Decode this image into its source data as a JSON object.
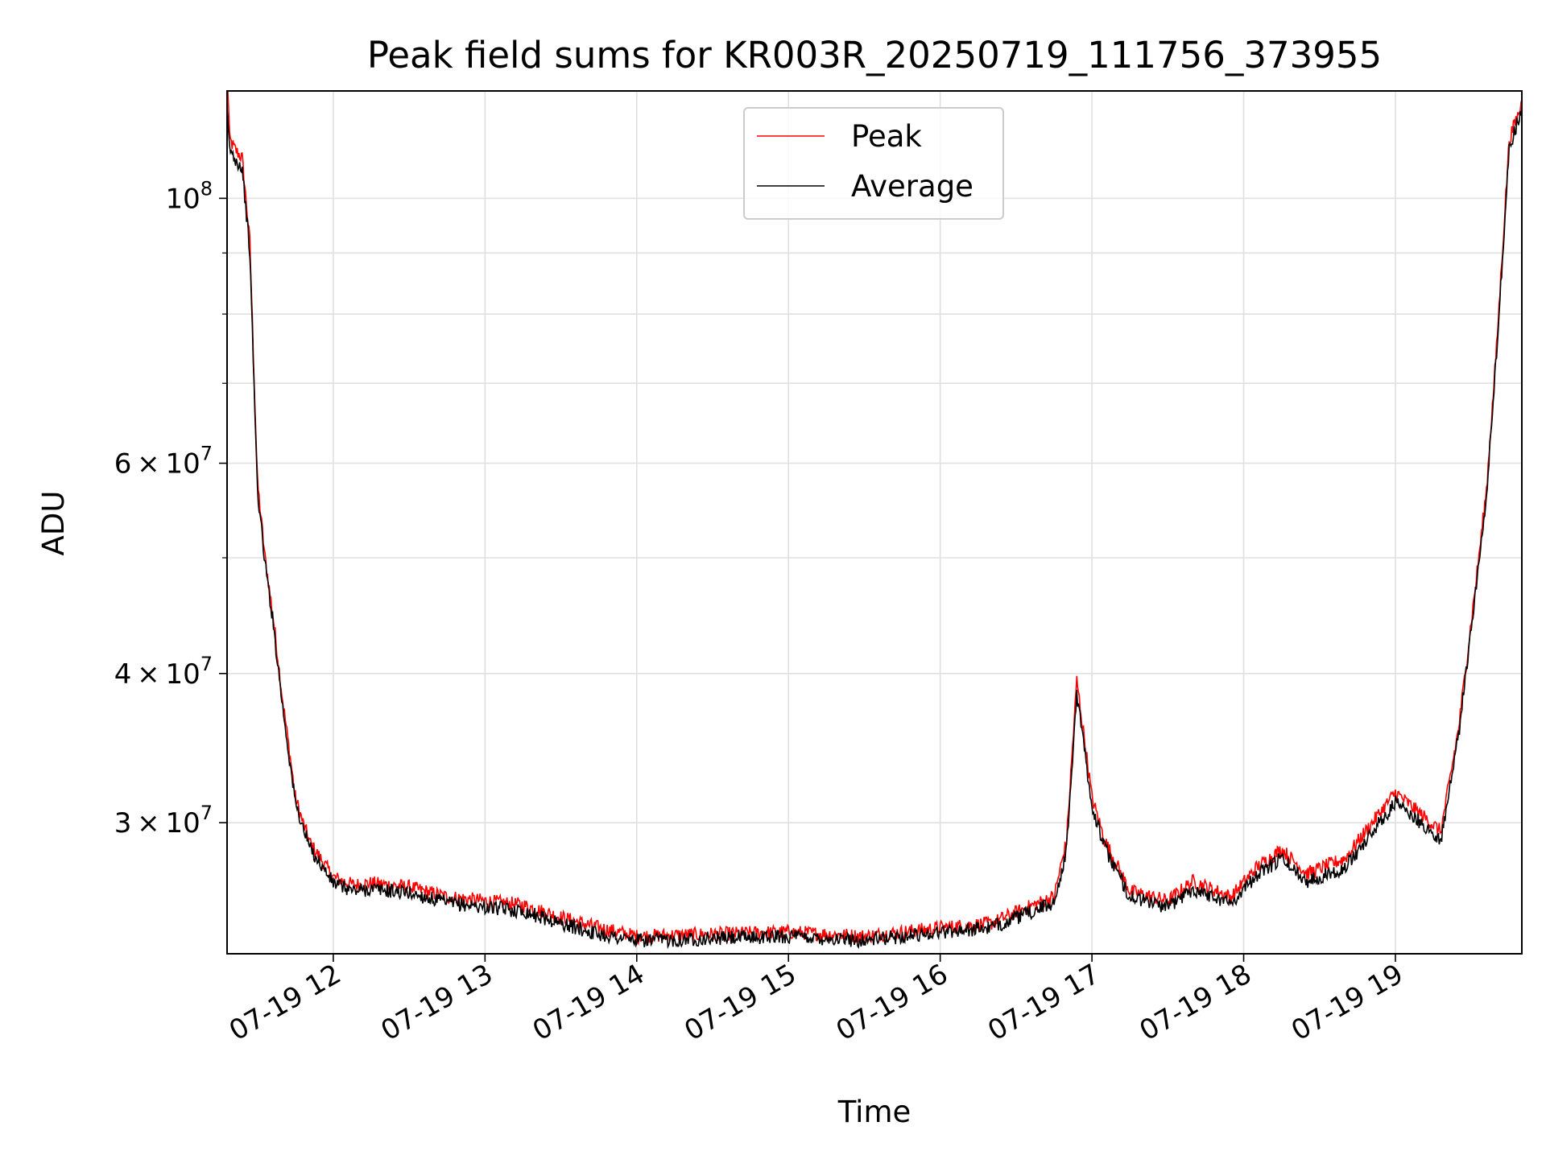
{
  "chart_data": {
    "type": "line",
    "title": "Peak field sums for KR003R_20250719_111756_373955",
    "xlabel": "Time",
    "ylabel": "ADU",
    "yscale": "log",
    "ylim": [
      23300000,
      123000000
    ],
    "xlim": [
      "2025-07-19 11:18",
      "2025-07-19 19:50"
    ],
    "grid": true,
    "legend_position": "top-center",
    "x_ticks": [
      {
        "t": "2025-07-19 12:00",
        "label": "07-19 12"
      },
      {
        "t": "2025-07-19 13:00",
        "label": "07-19 13"
      },
      {
        "t": "2025-07-19 14:00",
        "label": "07-19 14"
      },
      {
        "t": "2025-07-19 15:00",
        "label": "07-19 15"
      },
      {
        "t": "2025-07-19 16:00",
        "label": "07-19 16"
      },
      {
        "t": "2025-07-19 17:00",
        "label": "07-19 17"
      },
      {
        "t": "2025-07-19 18:00",
        "label": "07-19 18"
      },
      {
        "t": "2025-07-19 19:00",
        "label": "07-19 19"
      }
    ],
    "y_ticks": [
      {
        "v": 30000000,
        "coef": "3",
        "exp": "7"
      },
      {
        "v": 40000000,
        "coef": "4",
        "exp": "7"
      },
      {
        "v": 60000000,
        "coef": "6",
        "exp": "7"
      },
      {
        "v": 100000000,
        "coef": "",
        "exp": "8"
      }
    ],
    "y_minor_ticks": [
      50000000,
      70000000,
      80000000,
      90000000
    ],
    "series": [
      {
        "name": "Peak",
        "color": "#ff0000",
        "x": [
          "2025-07-19 11:18",
          "2025-07-19 11:19",
          "2025-07-19 11:21",
          "2025-07-19 11:24",
          "2025-07-19 11:27",
          "2025-07-19 11:30",
          "2025-07-19 11:33",
          "2025-07-19 11:36",
          "2025-07-19 11:40",
          "2025-07-19 11:43",
          "2025-07-19 11:45",
          "2025-07-19 11:48",
          "2025-07-19 11:51",
          "2025-07-19 11:55",
          "2025-07-19 12:00",
          "2025-07-19 12:08",
          "2025-07-19 12:15",
          "2025-07-19 12:30",
          "2025-07-19 12:45",
          "2025-07-19 13:00",
          "2025-07-19 13:15",
          "2025-07-19 13:30",
          "2025-07-19 13:45",
          "2025-07-19 14:00",
          "2025-07-19 14:30",
          "2025-07-19 15:00",
          "2025-07-19 15:30",
          "2025-07-19 16:00",
          "2025-07-19 16:20",
          "2025-07-19 16:35",
          "2025-07-19 16:45",
          "2025-07-19 16:50",
          "2025-07-19 16:54",
          "2025-07-19 17:00",
          "2025-07-19 17:05",
          "2025-07-19 17:15",
          "2025-07-19 17:30",
          "2025-07-19 17:40",
          "2025-07-19 17:55",
          "2025-07-19 18:05",
          "2025-07-19 18:15",
          "2025-07-19 18:25",
          "2025-07-19 18:40",
          "2025-07-19 19:00",
          "2025-07-19 19:10",
          "2025-07-19 19:18",
          "2025-07-19 19:25",
          "2025-07-19 19:32",
          "2025-07-19 19:36",
          "2025-07-19 19:40",
          "2025-07-19 19:45",
          "2025-07-19 19:50"
        ],
        "values": [
          130000000,
          112000000,
          110000000,
          108000000,
          92000000,
          58000000,
          50000000,
          45000000,
          38000000,
          34000000,
          31500000,
          30000000,
          28800000,
          28000000,
          27000000,
          26600000,
          26700000,
          26500000,
          26000000,
          25800000,
          25600000,
          25000000,
          24500000,
          24100000,
          24200000,
          24300000,
          24100000,
          24500000,
          24700000,
          25500000,
          26000000,
          29000000,
          39500000,
          31500000,
          29000000,
          26300000,
          25800000,
          26800000,
          26000000,
          27500000,
          28500000,
          27200000,
          28000000,
          31800000,
          30500000,
          29500000,
          36000000,
          48000000,
          57000000,
          75000000,
          112000000,
          120000000
        ]
      },
      {
        "name": "Average",
        "color": "#000000",
        "x": [
          "2025-07-19 11:18",
          "2025-07-19 11:19",
          "2025-07-19 11:21",
          "2025-07-19 11:24",
          "2025-07-19 11:27",
          "2025-07-19 11:30",
          "2025-07-19 11:33",
          "2025-07-19 11:36",
          "2025-07-19 11:40",
          "2025-07-19 11:43",
          "2025-07-19 11:45",
          "2025-07-19 11:48",
          "2025-07-19 11:51",
          "2025-07-19 11:55",
          "2025-07-19 12:00",
          "2025-07-19 12:08",
          "2025-07-19 12:15",
          "2025-07-19 12:30",
          "2025-07-19 12:45",
          "2025-07-19 13:00",
          "2025-07-19 13:15",
          "2025-07-19 13:30",
          "2025-07-19 13:45",
          "2025-07-19 14:00",
          "2025-07-19 14:30",
          "2025-07-19 15:00",
          "2025-07-19 15:30",
          "2025-07-19 16:00",
          "2025-07-19 16:20",
          "2025-07-19 16:35",
          "2025-07-19 16:45",
          "2025-07-19 16:50",
          "2025-07-19 16:54",
          "2025-07-19 17:00",
          "2025-07-19 17:05",
          "2025-07-19 17:15",
          "2025-07-19 17:30",
          "2025-07-19 17:40",
          "2025-07-19 17:55",
          "2025-07-19 18:05",
          "2025-07-19 18:15",
          "2025-07-19 18:25",
          "2025-07-19 18:40",
          "2025-07-19 19:00",
          "2025-07-19 19:10",
          "2025-07-19 19:18",
          "2025-07-19 19:25",
          "2025-07-19 19:32",
          "2025-07-19 19:36",
          "2025-07-19 19:40",
          "2025-07-19 19:45",
          "2025-07-19 19:50"
        ],
        "values": [
          118000000,
          110000000,
          108000000,
          106000000,
          90000000,
          57000000,
          49500000,
          44500000,
          37500000,
          33500000,
          31200000,
          29700000,
          28500000,
          27700000,
          26700000,
          26300000,
          26400000,
          26200000,
          25700000,
          25500000,
          25300000,
          24700000,
          24200000,
          23900000,
          24000000,
          24100000,
          23900000,
          24300000,
          24500000,
          25200000,
          25700000,
          28500000,
          38500000,
          31000000,
          28600000,
          26000000,
          25500000,
          26400000,
          25700000,
          27100000,
          28000000,
          26800000,
          27500000,
          31200000,
          30000000,
          29000000,
          35500000,
          47500000,
          56500000,
          74000000,
          110000000,
          119000000
        ]
      }
    ]
  }
}
